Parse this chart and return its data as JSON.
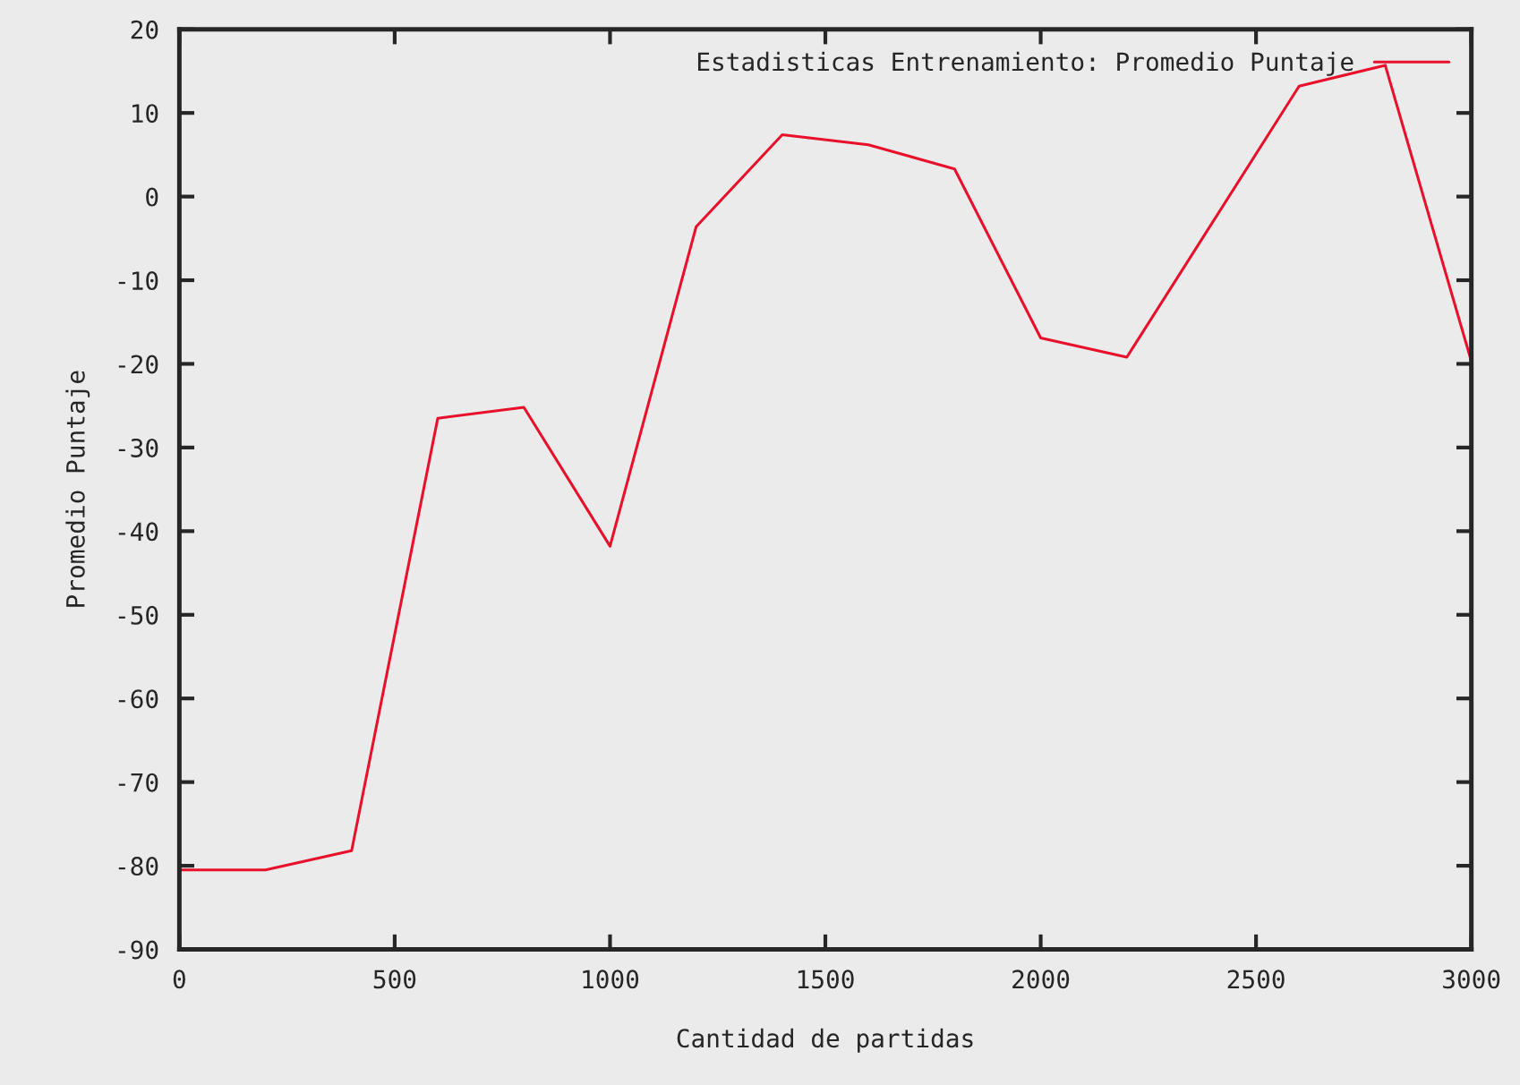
{
  "chart_data": {
    "type": "line",
    "xlabel": "Cantidad de partidas",
    "ylabel": "Promedio Puntaje",
    "x": [
      0,
      200,
      400,
      600,
      800,
      1000,
      1200,
      1400,
      1600,
      1800,
      2000,
      2200,
      2600,
      2800,
      3000
    ],
    "series": [
      {
        "name": "Estadisticas Entrenamiento: Promedio Puntaje",
        "color": "#e8102a",
        "values": [
          -80.5,
          -80.5,
          -78.2,
          -26.5,
          -25.2,
          -41.8,
          -3.6,
          7.4,
          6.2,
          3.3,
          -16.9,
          -19.2,
          13.2,
          15.7,
          -19.7
        ]
      }
    ],
    "xlim": [
      0,
      3000
    ],
    "xticks": [
      0,
      500,
      1000,
      1500,
      2000,
      2500,
      3000
    ],
    "ylim": [
      -90,
      20
    ],
    "yticks": [
      -90,
      -80,
      -70,
      -60,
      -50,
      -40,
      -30,
      -20,
      -10,
      0,
      10,
      20
    ],
    "legend": "top right",
    "grid": false,
    "marker": "none",
    "line_style": "solid"
  }
}
